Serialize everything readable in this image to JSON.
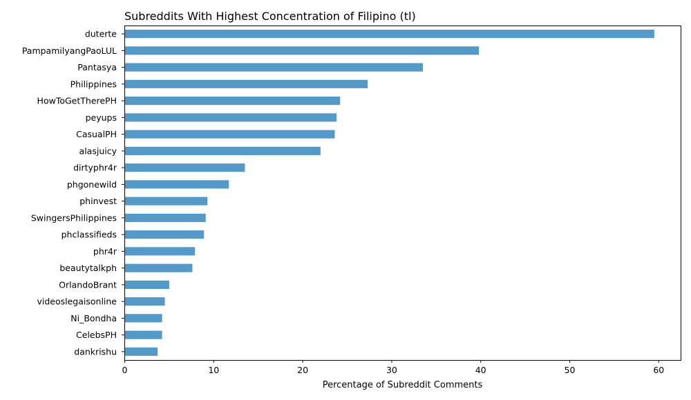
{
  "chart_data": {
    "type": "bar",
    "orientation": "horizontal",
    "title": "Subreddits With Highest Concentration of Filipino (tl)",
    "xlabel": "Percentage of Subreddit Comments",
    "ylabel": "",
    "xlim": [
      0,
      62.5
    ],
    "xticks": [
      0,
      10,
      20,
      30,
      40,
      50,
      60
    ],
    "bar_color": "#5599c8",
    "grid": false,
    "categories": [
      "duterte",
      "PampamilyangPaoLUL",
      "Pantasya",
      "Philippines",
      "HowToGetTherePH",
      "peyups",
      "CasualPH",
      "alasjuicy",
      "dirtyphr4r",
      "phgonewild",
      "phinvest",
      "SwingersPhilippines",
      "phclassifieds",
      "phr4r",
      "beautytalkph",
      "OrlandoBrant",
      "videoslegaisonline",
      "Ni_Bondha",
      "CelebsPH",
      "dankrishu"
    ],
    "values": [
      59.5,
      39.8,
      33.5,
      27.3,
      24.2,
      23.8,
      23.6,
      22.0,
      13.5,
      11.7,
      9.3,
      9.1,
      8.9,
      7.9,
      7.6,
      5.0,
      4.5,
      4.2,
      4.2,
      3.7
    ]
  }
}
